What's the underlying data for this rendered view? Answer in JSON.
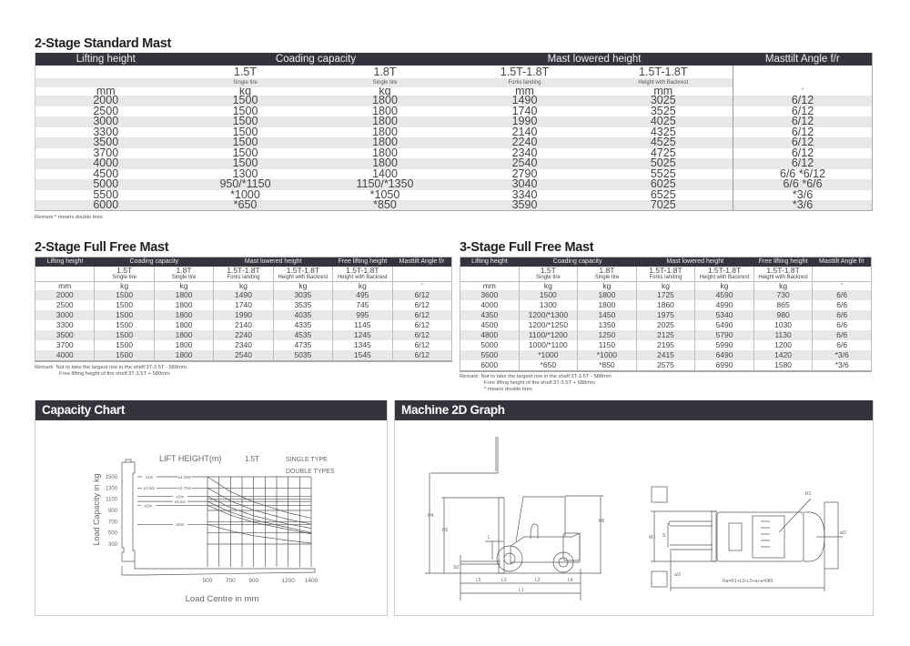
{
  "standard_mast": {
    "title": "2-Stage Standard Mast",
    "headers": [
      "Lifting height",
      "Coading capacity",
      "Mast lowered height",
      "Masttilt Angle f/r"
    ],
    "sizes": [
      "",
      "1.5T",
      "1.8T",
      "1.5T-1.8T",
      "1.5T-1.8T",
      ""
    ],
    "labels": [
      "",
      "Single tire",
      "Single tire",
      "Forks landing",
      "Height with Backrest",
      ""
    ],
    "units": [
      "mm",
      "kg",
      "kg",
      "mm",
      "mm",
      "°"
    ],
    "rows": [
      [
        "2000",
        "1500",
        "1800",
        "1490",
        "3025",
        "6/12"
      ],
      [
        "2500",
        "1500",
        "1800",
        "1740",
        "3525",
        "6/12"
      ],
      [
        "3000",
        "1500",
        "1800",
        "1990",
        "4025",
        "6/12"
      ],
      [
        "3300",
        "1500",
        "1800",
        "2140",
        "4325",
        "6/12"
      ],
      [
        "3500",
        "1500",
        "1800",
        "2240",
        "4525",
        "6/12"
      ],
      [
        "3700",
        "1500",
        "1800",
        "2340",
        "4725",
        "6/12"
      ],
      [
        "4000",
        "1500",
        "1800",
        "2540",
        "5025",
        "6/12"
      ],
      [
        "4500",
        "1300",
        "1400",
        "2790",
        "5525",
        "6/6  *6/12"
      ],
      [
        "5000",
        "950/*1150",
        "1150/*1350",
        "3040",
        "6025",
        "6/6  *6/6"
      ],
      [
        "5500",
        "*1000",
        "*1050",
        "3340",
        "6525",
        "*3/6"
      ],
      [
        "6000",
        "*650",
        "*850",
        "3590",
        "7025",
        "*3/6"
      ]
    ],
    "remark": "Remark:* means double tires"
  },
  "two_stage_ffm": {
    "title": "2-Stage Full Free Mast",
    "headers": [
      "Lifting height",
      "Coading capacity",
      "Mast lowered height",
      "Free lifting height",
      "Masttilt Angle f/r"
    ],
    "sizes": [
      "",
      "1.5T",
      "1.8T",
      "1.5T-1.8T",
      "1.5T-1.8T",
      "1.5T-1.8T",
      ""
    ],
    "labels": [
      "",
      "Single tire",
      "Single tire",
      "Forks landing",
      "Height with Backrest",
      "Height with Backrest",
      ""
    ],
    "units": [
      "mm",
      "kg",
      "kg",
      "kg",
      "kg",
      "kg",
      "°"
    ],
    "rows": [
      [
        "2000",
        "1500",
        "1800",
        "1490",
        "3035",
        "495",
        "6/12"
      ],
      [
        "2500",
        "1500",
        "1800",
        "1740",
        "3535",
        "745",
        "6/12"
      ],
      [
        "3000",
        "1500",
        "1800",
        "1990",
        "4035",
        "995",
        "6/12"
      ],
      [
        "3300",
        "1500",
        "1800",
        "2140",
        "4335",
        "1145",
        "6/12"
      ],
      [
        "3500",
        "1500",
        "1800",
        "2240",
        "4535",
        "1245",
        "6/12"
      ],
      [
        "3700",
        "1500",
        "1800",
        "2340",
        "4735",
        "1345",
        "6/12"
      ],
      [
        "4000",
        "1500",
        "1800",
        "2540",
        "5035",
        "1545",
        "6/12"
      ]
    ],
    "remark": [
      "Remark: Not to take the largest rise in the shelf:3T-3.5T - 580mm",
      "Free lifting height of the shelf:3T-3.5T + 580mm"
    ]
  },
  "three_stage_ffm": {
    "title": "3-Stage Full Free Mast",
    "headers": [
      "Lifting height",
      "Coading capacity",
      "Mast lowered height",
      "Free lifting height",
      "Masttilt Angle f/r"
    ],
    "sizes": [
      "",
      "1.5T",
      "1.8T",
      "1.5T-1.8T",
      "1.5T-1.8T",
      "1.5T-1.8T",
      ""
    ],
    "labels": [
      "",
      "Single tire",
      "Single tire",
      "Forks landing",
      "Height with Backrest",
      "Height with Backrest",
      ""
    ],
    "units": [
      "mm",
      "kg",
      "kg",
      "kg",
      "kg",
      "kg",
      "°"
    ],
    "rows": [
      [
        "3600",
        "1500",
        "1800",
        "1725",
        "4590",
        "730",
        "6/6"
      ],
      [
        "4000",
        "1300",
        "1800",
        "1860",
        "4990",
        "865",
        "6/6"
      ],
      [
        "4350",
        "1200/*1300",
        "1450",
        "1975",
        "5340",
        "980",
        "6/6"
      ],
      [
        "4500",
        "1200/*1250",
        "1350",
        "2025",
        "5490",
        "1030",
        "6/6"
      ],
      [
        "4800",
        "1100/*1200",
        "1250",
        "2125",
        "5790",
        "1130",
        "6/6"
      ],
      [
        "5000",
        "1000/*1100",
        "1150",
        "2195",
        "5990",
        "1200",
        "6/6"
      ],
      [
        "5500",
        "*1000",
        "*1000",
        "2415",
        "6490",
        "1420",
        "*3/6"
      ],
      [
        "6000",
        "*650",
        "*850",
        "2575",
        "6990",
        "1580",
        "*3/6"
      ]
    ],
    "remark": [
      "Remark: Not to take the largest rise in the shelf:3T-3.5T - 588mm",
      "Free lifting height of the shelf:3T-3.5T + 588mm",
      "* means double tires"
    ]
  },
  "capacity_chart": {
    "title": "Capacity Chart",
    "header_labels": {
      "lift_height": "LIFT HEIGHT(m)",
      "model": "1.5T",
      "single": "SINGLE TYPE",
      "double": "DOUBLE TYPES"
    },
    "ylabel": "Load Capacity in kg",
    "xlabel": "Load Centre in mm"
  },
  "chart_data": {
    "type": "line",
    "xlabel": "Load Centre in mm",
    "ylabel": "Load Capacity in kg",
    "xticks": [
      "500",
      "700",
      "900",
      "1200",
      "1400"
    ],
    "yticks": [
      "1500",
      "1300",
      "1100",
      "900",
      "700",
      "500",
      "300"
    ],
    "xlim": [
      500,
      1400
    ],
    "ylim": [
      300,
      1500
    ],
    "grid": true,
    "x": [
      500,
      700,
      900,
      1200,
      1400
    ],
    "series": [
      {
        "labels": [
          "≤4m",
          "≤4.25m"
        ],
        "values": [
          1500,
          1235,
          1050,
          857,
          763
        ]
      },
      {
        "labels": [
          "≤4.5m",
          "≤4.75m"
        ],
        "values": [
          1300,
          1070,
          905,
          740,
          654
        ]
      },
      {
        "labels": [
          "≤5m"
        ],
        "values": [
          1150,
          950,
          805,
          655,
          583
        ]
      },
      {
        "labels": [
          "≤5.5m"
        ],
        "values": [
          1060,
          870,
          735,
          595,
          502
        ]
      },
      {
        "labels": [
          "≤5m"
        ],
        "values": [
          990,
          815,
          690,
          560,
          480
        ]
      },
      {
        "labels": [
          "≤6m"
        ],
        "values": [
          650,
          535,
          450,
          365,
          316
        ]
      }
    ]
  },
  "machine_graph": {
    "title": "Machine 2D Graph",
    "labels": {
      "h4": "H4",
      "h2": "H2",
      "h6": "H6",
      "l": "L",
      "s0": "S0",
      "l5": "L5",
      "l3": "L3",
      "l2": "L2",
      "l4": "L4",
      "l1": "L1",
      "w1": "W1",
      "s": "S",
      "r": "R1",
      "a_left": "a/2",
      "a_right": "a/2",
      "formula": "Ra=R1+L3+L5+a+a=680"
    }
  }
}
